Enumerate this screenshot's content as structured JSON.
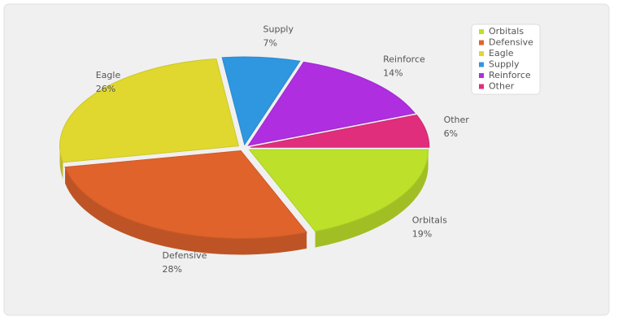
{
  "chart_data": {
    "type": "pie",
    "categories": [
      "Orbitals",
      "Defensive",
      "Eagle",
      "Supply",
      "Reinforce",
      "Other"
    ],
    "values": [
      19,
      28,
      26,
      7,
      14,
      6
    ],
    "value_labels": [
      "19%",
      "28%",
      "26%",
      "7%",
      "14%",
      "6%"
    ],
    "colors": [
      "#bde12a",
      "#e0632c",
      "#e0d82f",
      "#2f96e0",
      "#ae2ee0",
      "#e02e7c"
    ],
    "legend": "top-right"
  }
}
